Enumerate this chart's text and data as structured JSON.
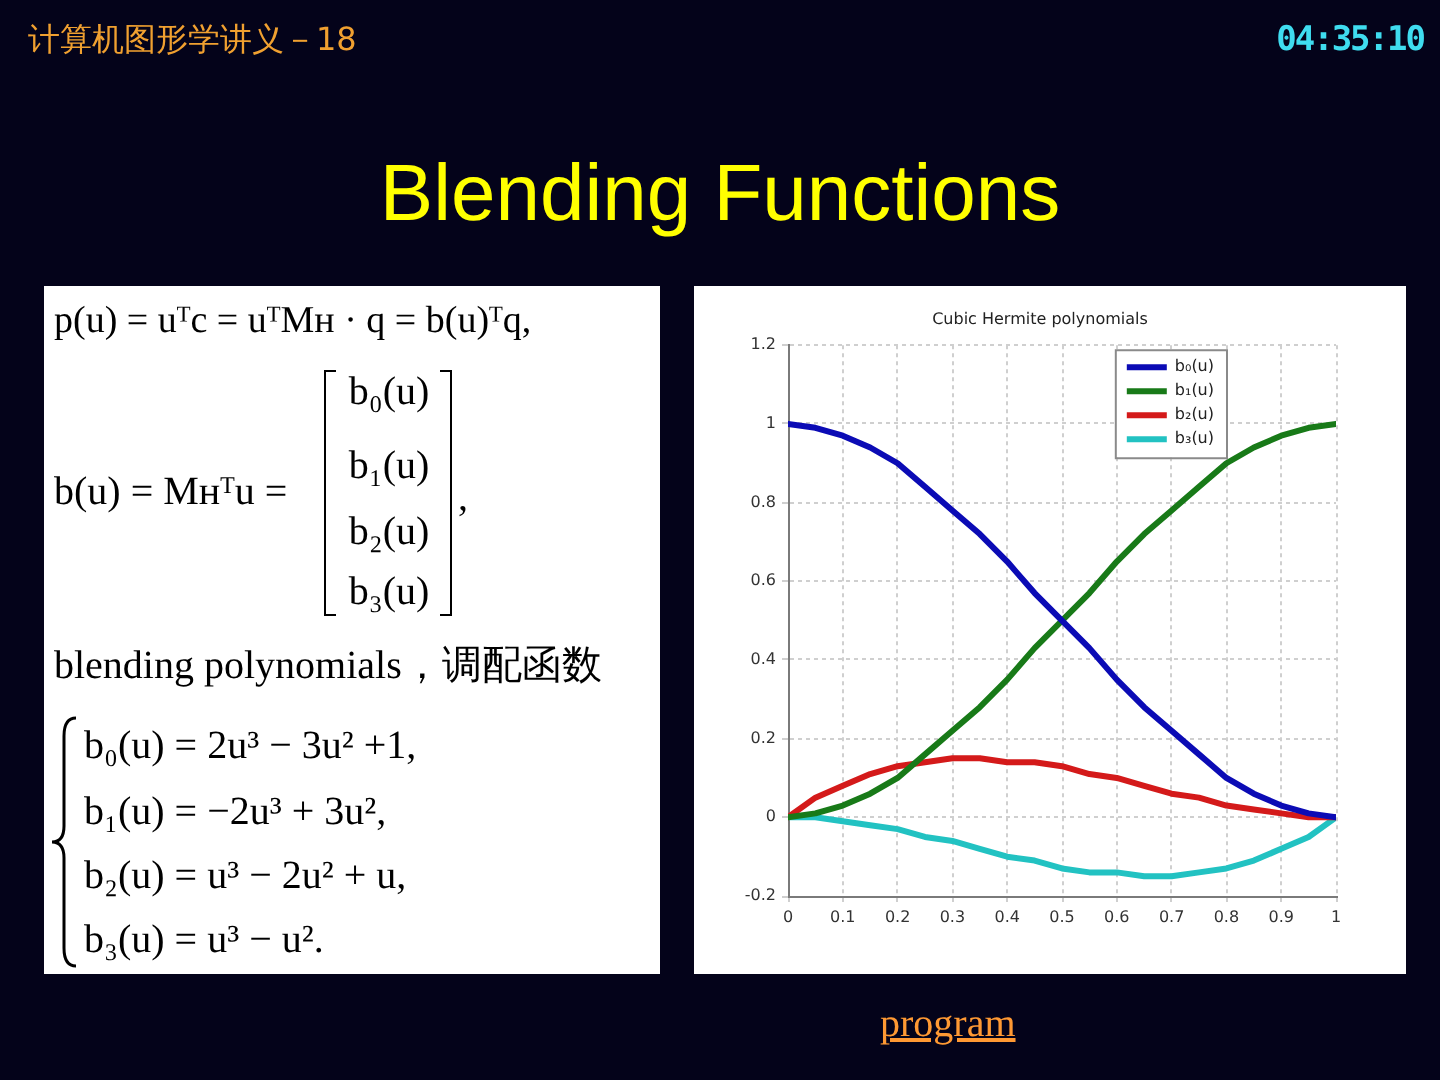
{
  "chart_data": {
    "type": "line",
    "title": "Blending Functions",
    "subtitle": "Cubic Hermite polynomials",
    "x": [
      0,
      0.05,
      0.1,
      0.15,
      0.2,
      0.25,
      0.3,
      0.35,
      0.4,
      0.45,
      0.5,
      0.55,
      0.6,
      0.65,
      0.7,
      0.75,
      0.8,
      0.85,
      0.9,
      0.95,
      1
    ],
    "series": [
      {
        "name": "b₀(u)",
        "color": "#0b0bb5",
        "values": [
          1,
          0.99,
          0.97,
          0.94,
          0.9,
          0.84,
          0.78,
          0.72,
          0.65,
          0.57,
          0.5,
          0.43,
          0.35,
          0.28,
          0.22,
          0.16,
          0.1,
          0.06,
          0.03,
          0.01,
          0
        ]
      },
      {
        "name": "b₁(u)",
        "color": "#187a18",
        "values": [
          0,
          0.01,
          0.03,
          0.06,
          0.1,
          0.16,
          0.22,
          0.28,
          0.35,
          0.43,
          0.5,
          0.57,
          0.65,
          0.72,
          0.78,
          0.84,
          0.9,
          0.94,
          0.97,
          0.99,
          1
        ]
      },
      {
        "name": "b₂(u)",
        "color": "#d41a1a",
        "values": [
          0,
          0.05,
          0.08,
          0.11,
          0.13,
          0.14,
          0.15,
          0.15,
          0.14,
          0.14,
          0.13,
          0.11,
          0.1,
          0.08,
          0.06,
          0.05,
          0.03,
          0.02,
          0.01,
          0,
          0
        ]
      },
      {
        "name": "b₃(u)",
        "color": "#22c2c2",
        "values": [
          0,
          0,
          -0.01,
          -0.02,
          -0.03,
          -0.05,
          -0.06,
          -0.08,
          -0.1,
          -0.11,
          -0.13,
          -0.14,
          -0.14,
          -0.15,
          -0.15,
          -0.14,
          -0.13,
          -0.11,
          -0.08,
          -0.05,
          0
        ]
      }
    ],
    "xlim": [
      0,
      1
    ],
    "xticks": [
      0,
      0.1,
      0.2,
      0.3,
      0.4,
      0.5,
      0.6,
      0.7,
      0.8,
      0.9,
      1
    ],
    "ylim": [
      -0.2,
      1.2
    ],
    "yticks": [
      -0.2,
      0,
      0.2,
      0.4,
      0.6,
      0.8,
      1,
      1.2
    ],
    "grid": true,
    "legend": "top right",
    "marker": "none",
    "line_style": "solid",
    "annotations": [
      "计算机图形学讲义－18",
      "04:35:10",
      "p(u) = uᵀc = uᵀMʜ · q = b(u)ᵀq,",
      "b(u) = Mʜᵀu =",
      "b₀(u)",
      "b₁(u)",
      "b₂(u)",
      "b₃(u)",
      ",",
      "blending polynomials，调配函数",
      "b₀(u) = 2u³ − 3u² +1,",
      "b₁(u) = −2u³ + 3u²,",
      "b₂(u) = u³ − 2u² + u,",
      "b₃(u) = u³ − u².",
      "program"
    ]
  }
}
